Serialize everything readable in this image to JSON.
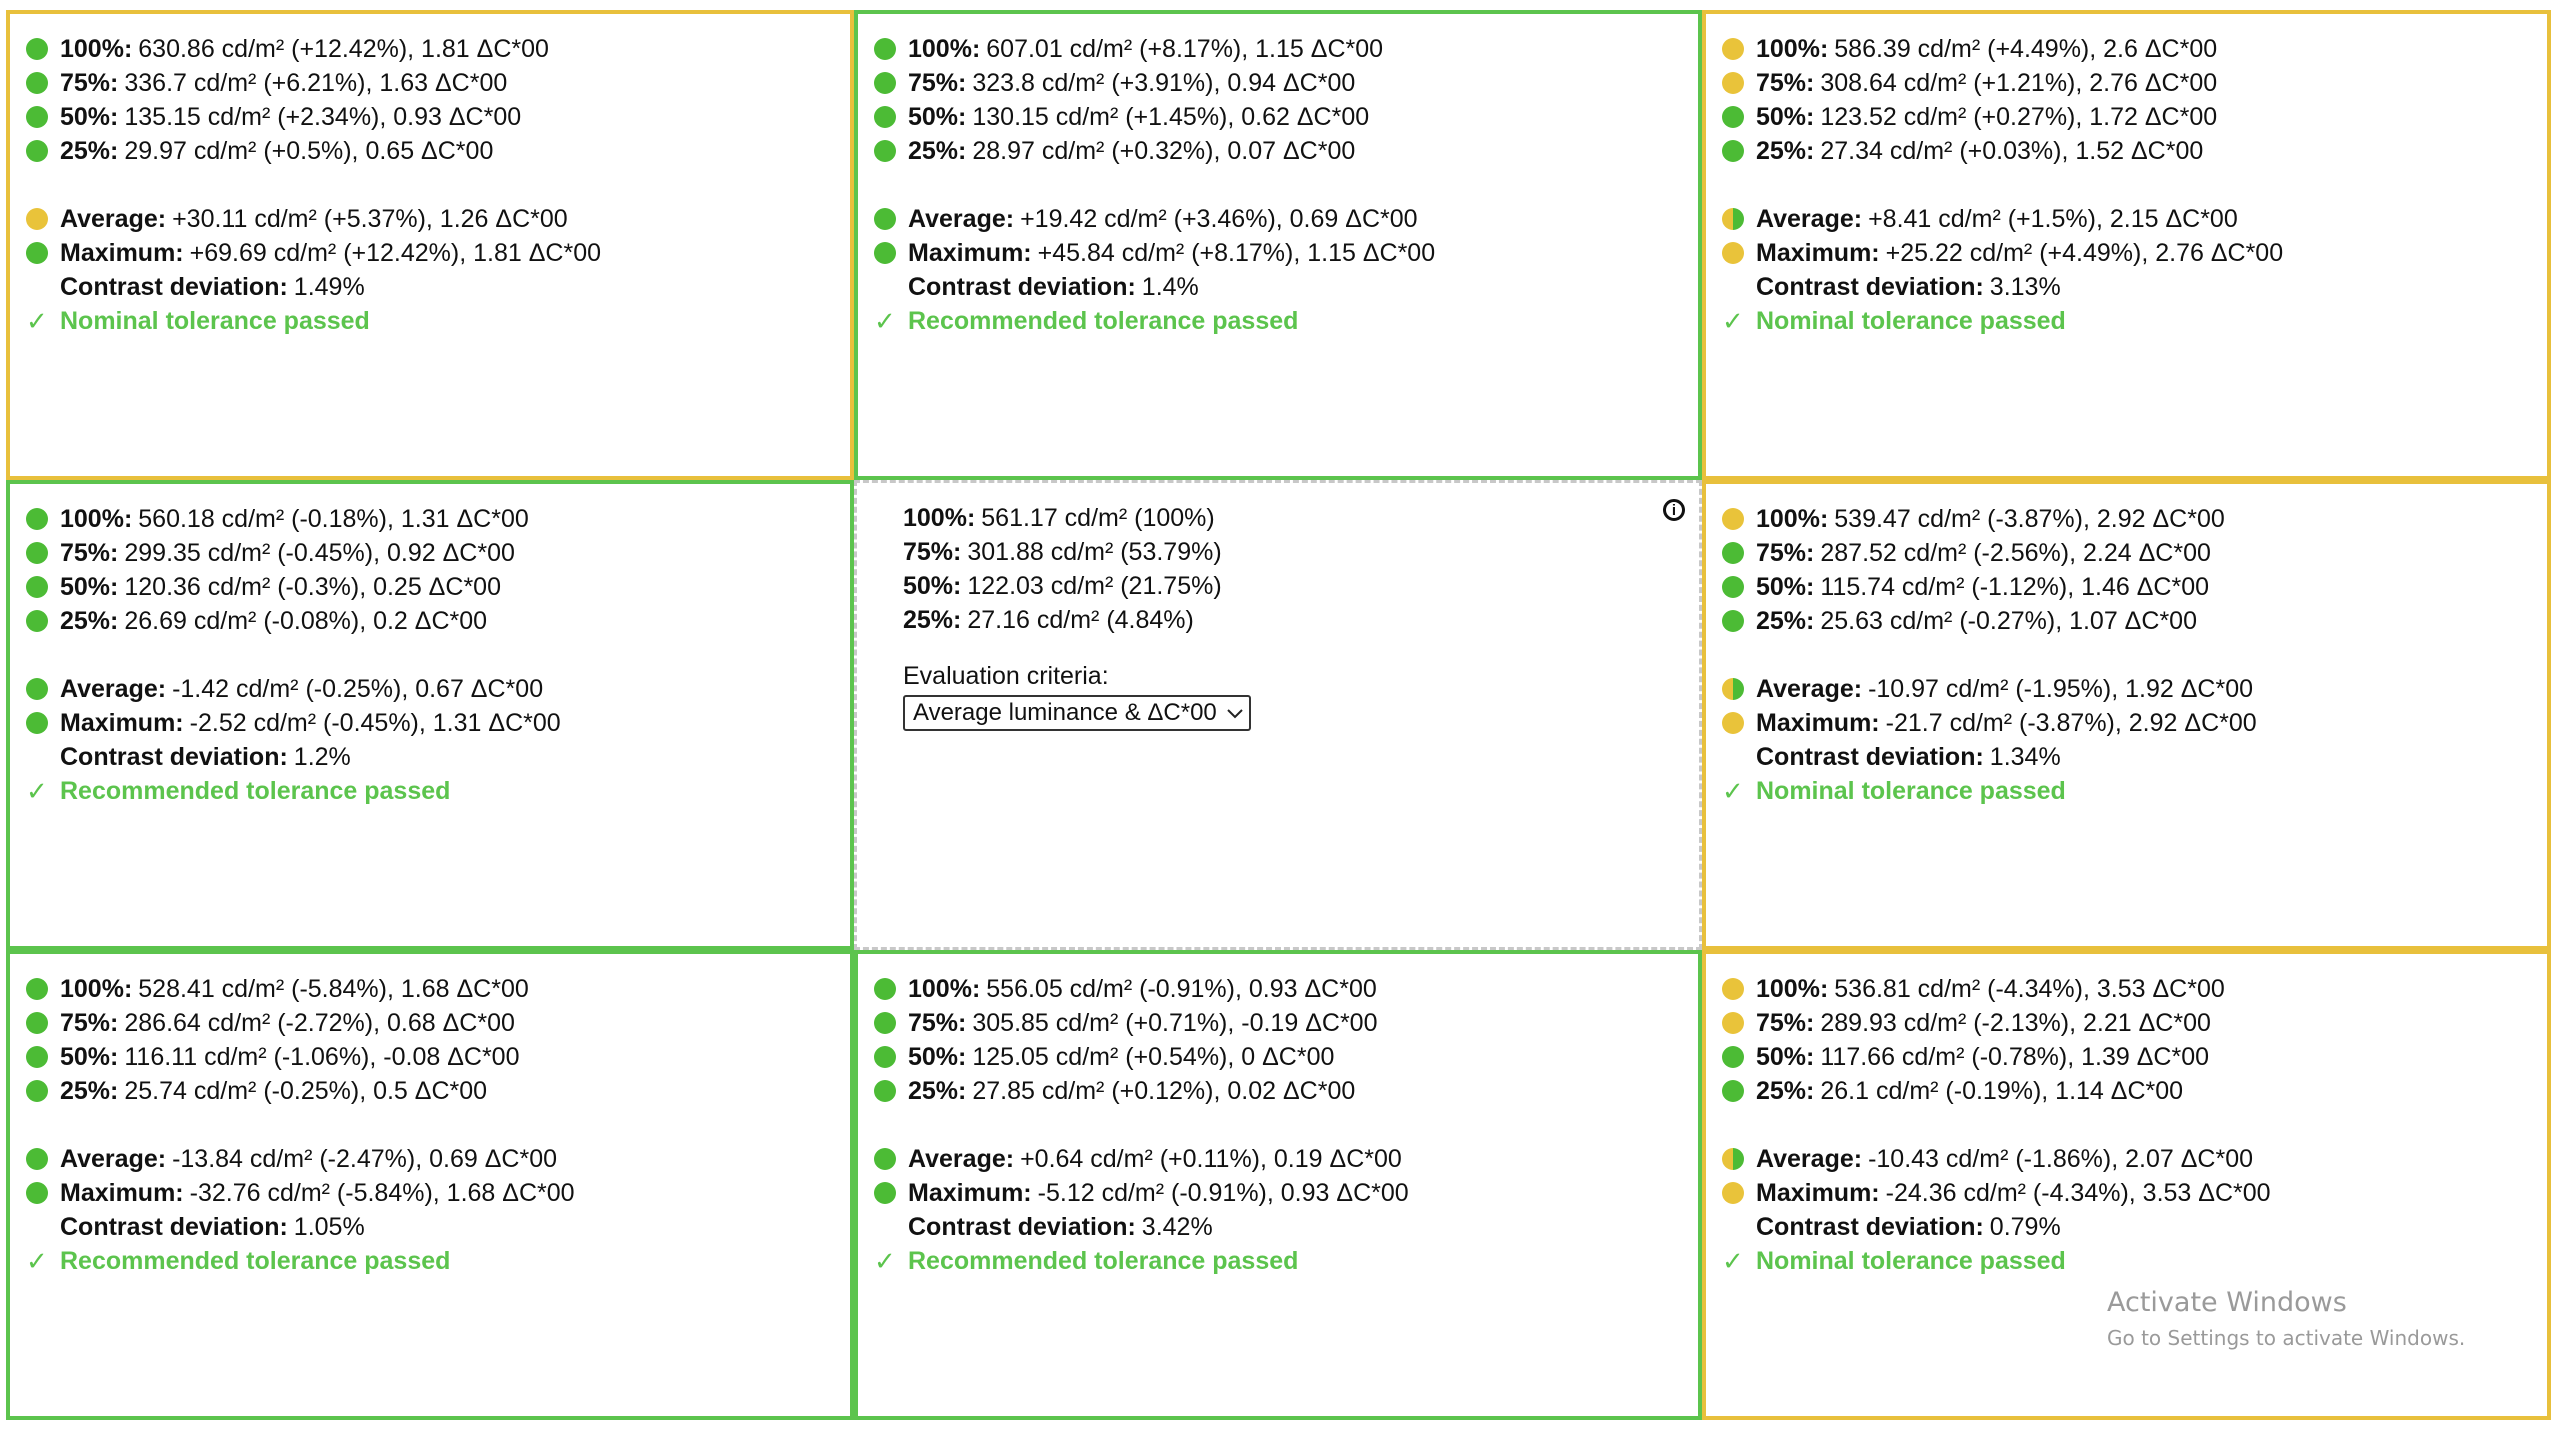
{
  "cells": [
    {
      "border": "yellow",
      "rows": [
        {
          "dot": "green",
          "label": "100%:",
          "text": "630.86 cd/m² (+12.42%), 1.81 ΔC*00"
        },
        {
          "dot": "green",
          "label": "75%:",
          "text": "336.7 cd/m² (+6.21%), 1.63 ΔC*00"
        },
        {
          "dot": "green",
          "label": "50%:",
          "text": "135.15 cd/m² (+2.34%), 0.93 ΔC*00"
        },
        {
          "dot": "green",
          "label": "25%:",
          "text": "29.97 cd/m² (+0.5%), 0.65 ΔC*00"
        }
      ],
      "avg": {
        "dot": "yellow",
        "label": "Average:",
        "text": "+30.11 cd/m² (+5.37%), 1.26 ΔC*00"
      },
      "max": {
        "dot": "green",
        "label": "Maximum:",
        "text": "+69.69 cd/m² (+12.42%), 1.81 ΔC*00"
      },
      "contrast": {
        "label": "Contrast deviation:",
        "text": "1.49%"
      },
      "status": "Nominal tolerance passed"
    },
    {
      "border": "green",
      "rows": [
        {
          "dot": "green",
          "label": "100%:",
          "text": "607.01 cd/m² (+8.17%), 1.15 ΔC*00"
        },
        {
          "dot": "green",
          "label": "75%:",
          "text": "323.8 cd/m² (+3.91%), 0.94 ΔC*00"
        },
        {
          "dot": "green",
          "label": "50%:",
          "text": "130.15 cd/m² (+1.45%), 0.62 ΔC*00"
        },
        {
          "dot": "green",
          "label": "25%:",
          "text": "28.97 cd/m² (+0.32%), 0.07 ΔC*00"
        }
      ],
      "avg": {
        "dot": "green",
        "label": "Average:",
        "text": "+19.42 cd/m² (+3.46%), 0.69 ΔC*00"
      },
      "max": {
        "dot": "green",
        "label": "Maximum:",
        "text": "+45.84 cd/m² (+8.17%), 1.15 ΔC*00"
      },
      "contrast": {
        "label": "Contrast deviation:",
        "text": "1.4%"
      },
      "status": "Recommended tolerance passed"
    },
    {
      "border": "yellow",
      "rows": [
        {
          "dot": "yellow",
          "label": "100%:",
          "text": "586.39 cd/m² (+4.49%), 2.6 ΔC*00"
        },
        {
          "dot": "yellow",
          "label": "75%:",
          "text": "308.64 cd/m² (+1.21%), 2.76 ΔC*00"
        },
        {
          "dot": "green",
          "label": "50%:",
          "text": "123.52 cd/m² (+0.27%), 1.72 ΔC*00"
        },
        {
          "dot": "green",
          "label": "25%:",
          "text": "27.34 cd/m² (+0.03%), 1.52 ΔC*00"
        }
      ],
      "avg": {
        "dot": "half",
        "label": "Average:",
        "text": "+8.41 cd/m² (+1.5%), 2.15 ΔC*00"
      },
      "max": {
        "dot": "yellow",
        "label": "Maximum:",
        "text": "+25.22 cd/m² (+4.49%), 2.76 ΔC*00"
      },
      "contrast": {
        "label": "Contrast deviation:",
        "text": "3.13%"
      },
      "status": "Nominal tolerance passed"
    },
    {
      "border": "green",
      "rows": [
        {
          "dot": "green",
          "label": "100%:",
          "text": "560.18 cd/m² (-0.18%), 1.31 ΔC*00"
        },
        {
          "dot": "green",
          "label": "75%:",
          "text": "299.35 cd/m² (-0.45%), 0.92 ΔC*00"
        },
        {
          "dot": "green",
          "label": "50%:",
          "text": "120.36 cd/m² (-0.3%), 0.25 ΔC*00"
        },
        {
          "dot": "green",
          "label": "25%:",
          "text": "26.69 cd/m² (-0.08%), 0.2 ΔC*00"
        }
      ],
      "avg": {
        "dot": "green",
        "label": "Average:",
        "text": "-1.42 cd/m² (-0.25%), 0.67 ΔC*00"
      },
      "max": {
        "dot": "green",
        "label": "Maximum:",
        "text": "-2.52 cd/m² (-0.45%), 1.31 ΔC*00"
      },
      "contrast": {
        "label": "Contrast deviation:",
        "text": "1.2%"
      },
      "status": "Recommended tolerance passed"
    },
    {
      "center": true,
      "rows": [
        {
          "label": "100%:",
          "text": "561.17 cd/m² (100%)"
        },
        {
          "label": "75%:",
          "text": "301.88 cd/m² (53.79%)"
        },
        {
          "label": "50%:",
          "text": "122.03 cd/m² (21.75%)"
        },
        {
          "label": "25%:",
          "text": "27.16 cd/m² (4.84%)"
        }
      ],
      "criteria_label": "Evaluation criteria:",
      "criteria_value": "Average luminance & ΔC*00",
      "info_icon": "info-circle-icon"
    },
    {
      "border": "yellow",
      "rows": [
        {
          "dot": "yellow",
          "label": "100%:",
          "text": "539.47 cd/m² (-3.87%), 2.92 ΔC*00"
        },
        {
          "dot": "green",
          "label": "75%:",
          "text": "287.52 cd/m² (-2.56%), 2.24 ΔC*00"
        },
        {
          "dot": "green",
          "label": "50%:",
          "text": "115.74 cd/m² (-1.12%), 1.46 ΔC*00"
        },
        {
          "dot": "green",
          "label": "25%:",
          "text": "25.63 cd/m² (-0.27%), 1.07 ΔC*00"
        }
      ],
      "avg": {
        "dot": "half",
        "label": "Average:",
        "text": "-10.97 cd/m² (-1.95%), 1.92 ΔC*00"
      },
      "max": {
        "dot": "yellow",
        "label": "Maximum:",
        "text": "-21.7 cd/m² (-3.87%), 2.92 ΔC*00"
      },
      "contrast": {
        "label": "Contrast deviation:",
        "text": "1.34%"
      },
      "status": "Nominal tolerance passed"
    },
    {
      "border": "green",
      "rows": [
        {
          "dot": "green",
          "label": "100%:",
          "text": "528.41 cd/m² (-5.84%), 1.68 ΔC*00"
        },
        {
          "dot": "green",
          "label": "75%:",
          "text": "286.64 cd/m² (-2.72%), 0.68 ΔC*00"
        },
        {
          "dot": "green",
          "label": "50%:",
          "text": "116.11 cd/m² (-1.06%), -0.08 ΔC*00"
        },
        {
          "dot": "green",
          "label": "25%:",
          "text": "25.74 cd/m² (-0.25%), 0.5 ΔC*00"
        }
      ],
      "avg": {
        "dot": "green",
        "label": "Average:",
        "text": "-13.84 cd/m² (-2.47%), 0.69 ΔC*00"
      },
      "max": {
        "dot": "green",
        "label": "Maximum:",
        "text": "-32.76 cd/m² (-5.84%), 1.68 ΔC*00"
      },
      "contrast": {
        "label": "Contrast deviation:",
        "text": "1.05%"
      },
      "status": "Recommended tolerance passed"
    },
    {
      "border": "green",
      "rows": [
        {
          "dot": "green",
          "label": "100%:",
          "text": "556.05 cd/m² (-0.91%), 0.93 ΔC*00"
        },
        {
          "dot": "green",
          "label": "75%:",
          "text": "305.85 cd/m² (+0.71%), -0.19 ΔC*00"
        },
        {
          "dot": "green",
          "label": "50%:",
          "text": "125.05 cd/m² (+0.54%), 0 ΔC*00"
        },
        {
          "dot": "green",
          "label": "25%:",
          "text": "27.85 cd/m² (+0.12%), 0.02 ΔC*00"
        }
      ],
      "avg": {
        "dot": "green",
        "label": "Average:",
        "text": "+0.64 cd/m² (+0.11%), 0.19 ΔC*00"
      },
      "max": {
        "dot": "green",
        "label": "Maximum:",
        "text": "-5.12 cd/m² (-0.91%), 0.93 ΔC*00"
      },
      "contrast": {
        "label": "Contrast deviation:",
        "text": "3.42%"
      },
      "status": "Recommended tolerance passed"
    },
    {
      "border": "yellow",
      "rows": [
        {
          "dot": "yellow",
          "label": "100%:",
          "text": "536.81 cd/m² (-4.34%), 3.53 ΔC*00"
        },
        {
          "dot": "yellow",
          "label": "75%:",
          "text": "289.93 cd/m² (-2.13%), 2.21 ΔC*00"
        },
        {
          "dot": "green",
          "label": "50%:",
          "text": "117.66 cd/m² (-0.78%), 1.39 ΔC*00"
        },
        {
          "dot": "green",
          "label": "25%:",
          "text": "26.1 cd/m² (-0.19%), 1.14 ΔC*00"
        }
      ],
      "avg": {
        "dot": "half",
        "label": "Average:",
        "text": "-10.43 cd/m² (-1.86%), 2.07 ΔC*00"
      },
      "max": {
        "dot": "yellow",
        "label": "Maximum:",
        "text": "-24.36 cd/m² (-4.34%), 3.53 ΔC*00"
      },
      "contrast": {
        "label": "Contrast deviation:",
        "text": "0.79%"
      },
      "status": "Nominal tolerance passed"
    }
  ],
  "status_check_icon": "check-icon",
  "watermark": {
    "title": "Activate Windows",
    "subtitle": "Go to Settings to activate Windows."
  },
  "colors": {
    "green": "#4cbb35",
    "yellow": "#e9c33a",
    "passed_text": "#5cc44d"
  }
}
